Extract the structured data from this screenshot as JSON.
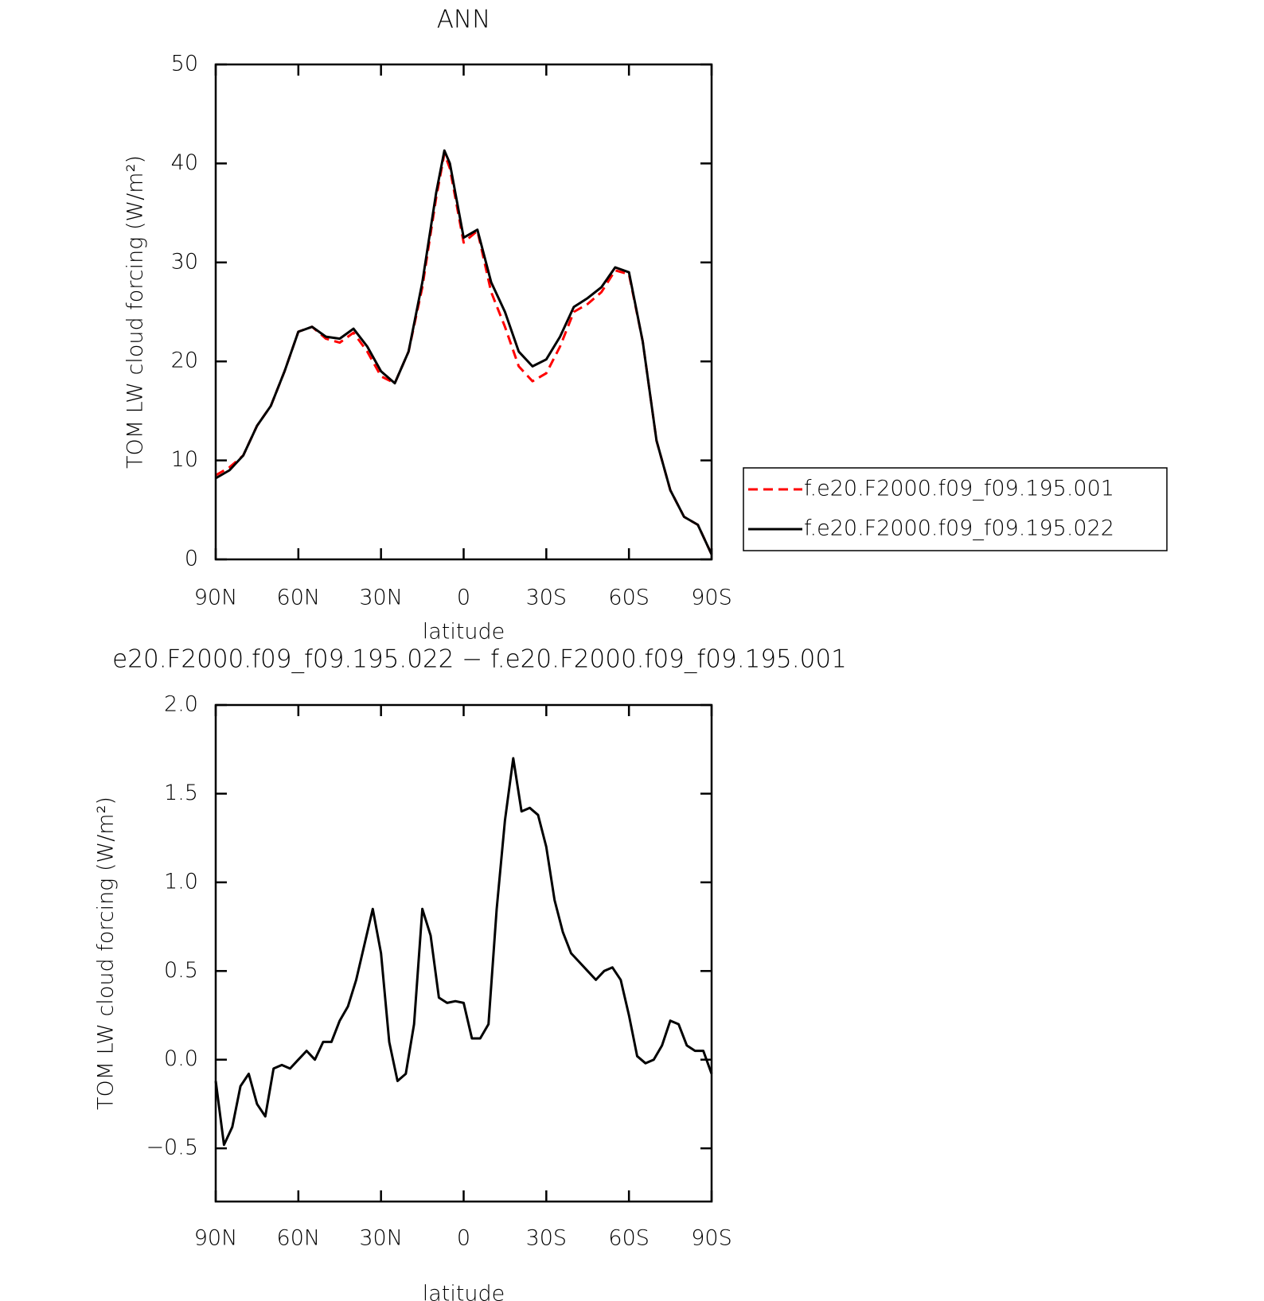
{
  "chart_data": [
    {
      "type": "line",
      "title": "ANN",
      "xlabel": "latitude",
      "ylabel": "TOM LW cloud forcing (W/m²)",
      "x": [
        90,
        85,
        80,
        75,
        70,
        65,
        60,
        55,
        50,
        45,
        40,
        35,
        30,
        25,
        20,
        15,
        10,
        7,
        5,
        0,
        -5,
        -10,
        -15,
        -20,
        -25,
        -30,
        -35,
        -40,
        -45,
        -50,
        -55,
        -60,
        -65,
        -70,
        -75,
        -80,
        -85,
        -90
      ],
      "series": [
        {
          "name": "f.e20.F2000.f09_f09.195.001",
          "color": "#ff0000",
          "linestyle": "dashed",
          "values": [
            8.5,
            9.3,
            10.5,
            13.5,
            15.5,
            19,
            23,
            23.5,
            22.3,
            21.9,
            22.9,
            21,
            18.5,
            17.8,
            21,
            27.5,
            36.5,
            41,
            39.5,
            32,
            33.2,
            27,
            23.5,
            19.5,
            18,
            18.8,
            21.5,
            25,
            25.8,
            27,
            29.2,
            28.8,
            22,
            12,
            7,
            4.3,
            3.5,
            0.5
          ]
        },
        {
          "name": "f.e20.F2000.f09_f09.195.022",
          "color": "#000000",
          "linestyle": "solid",
          "values": [
            8.2,
            9,
            10.5,
            13.5,
            15.5,
            19,
            23,
            23.5,
            22.5,
            22.3,
            23.3,
            21.5,
            19,
            17.8,
            21,
            28,
            37,
            41.3,
            40,
            32.5,
            33.3,
            28,
            25,
            21,
            19.5,
            20.2,
            22.5,
            25.5,
            26.4,
            27.5,
            29.5,
            29,
            22,
            12,
            7,
            4.3,
            3.5,
            0.5
          ]
        }
      ],
      "xlim": [
        90,
        -90
      ],
      "xticks": [
        {
          "value": 90,
          "label": "90N"
        },
        {
          "value": 60,
          "label": "60N"
        },
        {
          "value": 30,
          "label": "30N"
        },
        0,
        {
          "value": -30,
          "label": "30S"
        },
        {
          "value": -60,
          "label": "60S"
        },
        {
          "value": -90,
          "label": "90S"
        }
      ],
      "ylim": [
        0,
        50
      ],
      "yticks": [
        0,
        10,
        20,
        30,
        40,
        50
      ],
      "legend": "right"
    },
    {
      "type": "line",
      "title": "e20.F2000.f09_f09.195.022 − f.e20.F2000.f09_f09.195.001",
      "xlabel": "latitude",
      "ylabel": "TOM LW cloud forcing (W/m²)",
      "x": [
        90,
        87,
        84,
        81,
        78,
        75,
        72,
        69,
        66,
        63,
        60,
        57,
        54,
        51,
        48,
        45,
        42,
        39,
        36,
        33,
        30,
        27,
        24,
        21,
        18,
        15,
        12,
        9,
        6,
        3,
        0,
        -3,
        -6,
        -9,
        -12,
        -15,
        -18,
        -21,
        -24,
        -27,
        -30,
        -33,
        -36,
        -39,
        -42,
        -45,
        -48,
        -51,
        -54,
        -57,
        -60,
        -63,
        -66,
        -69,
        -72,
        -75,
        -78,
        -81,
        -84,
        -87,
        -90
      ],
      "color": "#000000",
      "values": [
        -0.12,
        -0.48,
        -0.38,
        -0.15,
        -0.08,
        -0.25,
        -0.32,
        -0.05,
        -0.03,
        -0.05,
        0.0,
        0.05,
        0.0,
        0.1,
        0.1,
        0.22,
        0.3,
        0.45,
        0.65,
        0.85,
        0.6,
        0.1,
        -0.12,
        -0.08,
        0.2,
        0.85,
        0.7,
        0.35,
        0.32,
        0.33,
        0.32,
        0.12,
        0.12,
        0.2,
        0.85,
        1.35,
        1.7,
        1.4,
        1.42,
        1.38,
        1.2,
        0.9,
        0.72,
        0.6,
        0.55,
        0.5,
        0.45,
        0.5,
        0.52,
        0.45,
        0.25,
        0.02,
        -0.02,
        0.0,
        0.08,
        0.22,
        0.2,
        0.08,
        0.05,
        0.05,
        -0.08
      ],
      "xlim": [
        90,
        -90
      ],
      "xticks": [
        {
          "value": 90,
          "label": "90N"
        },
        {
          "value": 60,
          "label": "60N"
        },
        {
          "value": 30,
          "label": "30N"
        },
        0,
        {
          "value": -30,
          "label": "30S"
        },
        {
          "value": -60,
          "label": "60S"
        },
        {
          "value": -90,
          "label": "90S"
        }
      ],
      "ylim": [
        -0.8,
        2.0
      ],
      "yticks": [
        {
          "value": -0.5,
          "label": "−0.5"
        },
        {
          "value": 0,
          "label": "0.0"
        },
        0.5,
        {
          "value": 1,
          "label": "1.0"
        },
        1.5,
        {
          "value": 2,
          "label": "2.0"
        }
      ]
    }
  ]
}
